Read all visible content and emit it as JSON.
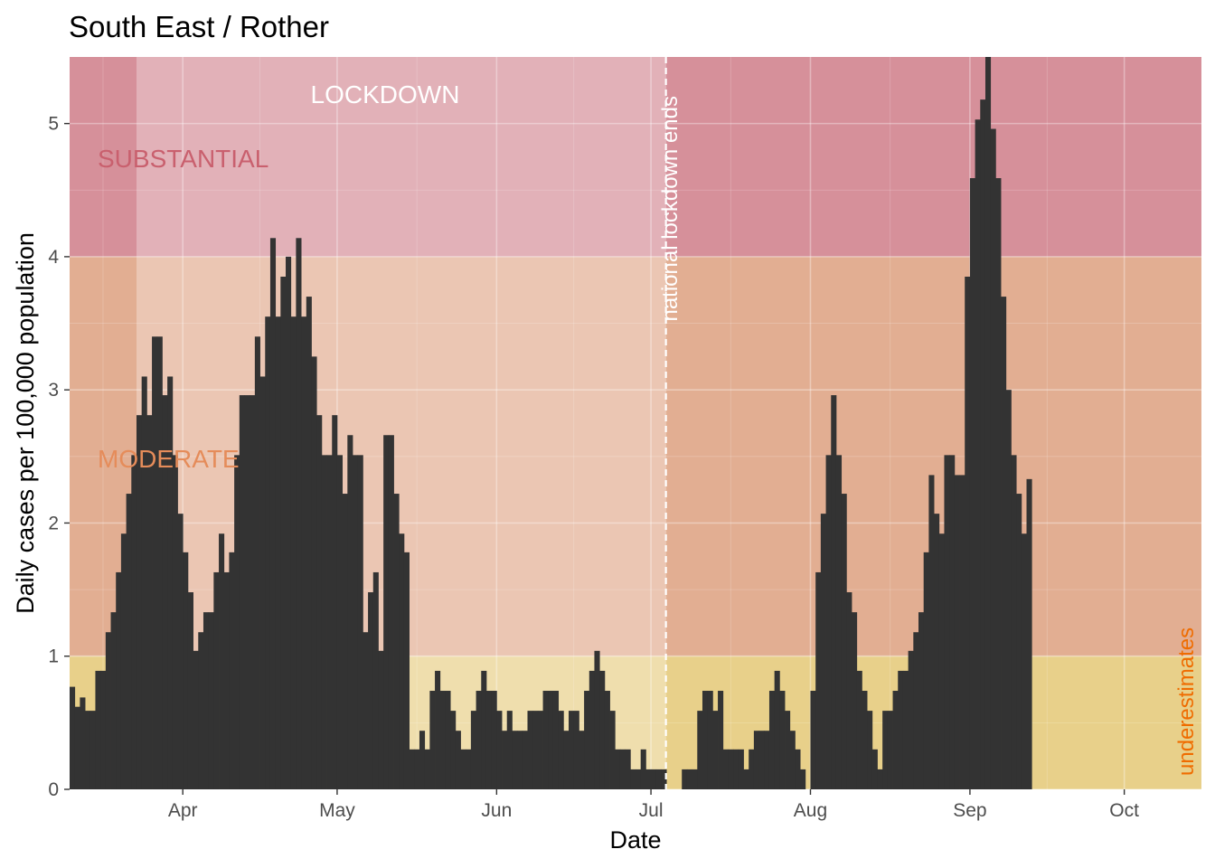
{
  "chart_data": {
    "type": "bar",
    "title": "South East / Rother",
    "xlabel": "Date",
    "ylabel": "Daily cases per 100,000 population",
    "ylim": [
      0,
      5.5
    ],
    "x_range": [
      "2020-03-10",
      "2020-10-16"
    ],
    "x_ticks": [
      {
        "date": "2020-04-01",
        "label": "Apr"
      },
      {
        "date": "2020-05-01",
        "label": "May"
      },
      {
        "date": "2020-06-01",
        "label": "Jun"
      },
      {
        "date": "2020-07-01",
        "label": "Jul"
      },
      {
        "date": "2020-08-01",
        "label": "Aug"
      },
      {
        "date": "2020-09-01",
        "label": "Sep"
      },
      {
        "date": "2020-10-01",
        "label": "Oct"
      }
    ],
    "y_ticks": [
      0,
      1,
      2,
      3,
      4,
      5
    ],
    "grid": true,
    "start_date": "2020-03-10",
    "values": [
      0.77,
      0.62,
      0.69,
      0.59,
      0.59,
      0.89,
      0.89,
      1.18,
      1.33,
      1.63,
      1.92,
      2.22,
      2.51,
      2.81,
      3.1,
      2.81,
      3.4,
      3.4,
      2.96,
      3.1,
      2.51,
      2.07,
      1.78,
      1.48,
      1.04,
      1.18,
      1.33,
      1.33,
      1.63,
      1.92,
      1.63,
      1.78,
      2.51,
      2.96,
      2.96,
      2.96,
      3.4,
      3.1,
      3.55,
      4.14,
      3.55,
      3.85,
      4.0,
      3.55,
      4.14,
      3.55,
      3.7,
      3.25,
      2.81,
      2.51,
      2.51,
      2.81,
      2.51,
      2.22,
      2.66,
      2.51,
      2.51,
      1.18,
      1.48,
      1.63,
      1.04,
      2.66,
      2.66,
      2.22,
      1.92,
      1.78,
      0.3,
      0.3,
      0.44,
      0.3,
      0.74,
      0.89,
      0.74,
      0.74,
      0.59,
      0.44,
      0.3,
      0.3,
      0.59,
      0.74,
      0.89,
      0.74,
      0.74,
      0.59,
      0.44,
      0.59,
      0.44,
      0.44,
      0.44,
      0.59,
      0.59,
      0.59,
      0.74,
      0.74,
      0.74,
      0.59,
      0.44,
      0.59,
      0.59,
      0.44,
      0.74,
      0.89,
      1.04,
      0.89,
      0.74,
      0.59,
      0.3,
      0.3,
      0.3,
      0.15,
      0.15,
      0.3,
      0.15,
      0.15,
      0.15,
      0.15,
      0.0,
      0.0,
      0.0,
      0.15,
      0.15,
      0.15,
      0.59,
      0.74,
      0.74,
      0.59,
      0.74,
      0.3,
      0.3,
      0.3,
      0.3,
      0.15,
      0.3,
      0.44,
      0.44,
      0.44,
      0.74,
      0.89,
      0.74,
      0.59,
      0.44,
      0.3,
      0.15,
      0.0,
      0.74,
      1.63,
      2.07,
      2.51,
      2.96,
      2.51,
      2.22,
      1.48,
      1.33,
      0.89,
      0.74,
      0.59,
      0.3,
      0.15,
      0.59,
      0.59,
      0.74,
      0.89,
      0.89,
      1.04,
      1.18,
      1.33,
      1.78,
      2.36,
      2.07,
      1.92,
      2.51,
      2.51,
      2.36,
      2.36,
      3.85,
      4.59,
      5.03,
      5.18,
      5.5,
      4.96,
      4.59,
      3.7,
      3.0,
      2.51,
      2.22,
      1.92,
      2.33
    ]
  },
  "bands": [
    {
      "label": "SUBSTANTIAL",
      "ymin": 4,
      "ymax": 5.5,
      "color": "#d6909a"
    },
    {
      "label": "MODERATE",
      "ymin": 1,
      "ymax": 4,
      "color": "#e2ae92"
    },
    {
      "label": "",
      "ymin": 0,
      "ymax": 1,
      "color": "#e8d08a"
    }
  ],
  "lockdown": {
    "label": "LOCKDOWN",
    "start": "2020-03-23",
    "end": "2020-07-04",
    "color": "#ffffff"
  },
  "annotations": {
    "national_lockdown_ends": {
      "label": "national lockdown ends",
      "date": "2020-07-04"
    },
    "underestimates": {
      "label": "underestimates",
      "color": "#ef6c00"
    }
  },
  "colors": {
    "bars": "#333333",
    "grid": "#ffffff",
    "substantial_text": "#c9606e",
    "moderate_text": "#e58c5a"
  }
}
